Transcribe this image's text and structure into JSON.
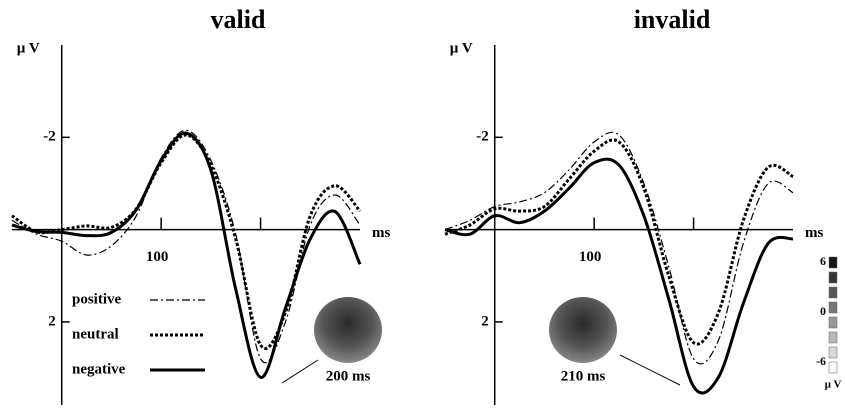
{
  "chart_data": [
    {
      "type": "line",
      "title": "valid",
      "ylabel": "µ V",
      "xlabel": "ms",
      "y_inverted": true,
      "xlim": [
        -50,
        300
      ],
      "ylim": [
        -4,
        3.8
      ],
      "xticks": [
        100,
        {
          "value": 200,
          "label": null
        }
      ],
      "yticks": [
        -2,
        2
      ],
      "legend": "lower left",
      "annotation": "200 ms",
      "x": [
        -50,
        -25,
        0,
        25,
        50,
        75,
        100,
        125,
        150,
        175,
        200,
        225,
        250,
        275,
        300
      ],
      "series": [
        {
          "name": "positive",
          "color": "#000000",
          "dash": "dash-dot",
          "width": 1.2,
          "values": [
            -0.2,
            0.1,
            0.25,
            0.55,
            0.35,
            -0.3,
            -1.55,
            -2.15,
            -1.5,
            0.1,
            2.8,
            2.0,
            -0.1,
            -0.75,
            -0.1
          ]
        },
        {
          "name": "neutral",
          "color": "#000000",
          "dash": "dotted",
          "width": 3,
          "values": [
            -0.3,
            0.05,
            0.0,
            -0.08,
            -0.05,
            -0.45,
            -1.45,
            -2.05,
            -1.4,
            0.2,
            2.5,
            1.8,
            -0.3,
            -0.95,
            -0.4
          ]
        },
        {
          "name": "negative",
          "color": "#000000",
          "dash": "solid",
          "width": 3,
          "values": [
            -0.1,
            0.04,
            0.06,
            0.13,
            0.06,
            -0.43,
            -1.5,
            -2.09,
            -1.29,
            1.29,
            3.2,
            1.7,
            0.2,
            -0.39,
            0.75
          ]
        }
      ]
    },
    {
      "type": "line",
      "title": "invalid",
      "ylabel": "µ V",
      "xlabel": "ms",
      "y_inverted": true,
      "xlim": [
        -50,
        300
      ],
      "ylim": [
        -4,
        3.8
      ],
      "xticks": [
        100,
        {
          "value": 200,
          "label": null
        }
      ],
      "yticks": [
        -2,
        2
      ],
      "annotation": "210 ms",
      "colorbar": {
        "ticks": [
          6,
          0,
          -6
        ],
        "label": "µ V"
      },
      "x": [
        -50,
        -25,
        0,
        25,
        50,
        75,
        100,
        125,
        150,
        175,
        200,
        225,
        250,
        275,
        300
      ],
      "series": [
        {
          "color": "#000000",
          "dash": "dash-dot",
          "width": 1.2,
          "values": [
            0.0,
            -0.2,
            -0.5,
            -0.6,
            -0.8,
            -1.3,
            -1.9,
            -2.05,
            -1.0,
            0.8,
            2.8,
            2.4,
            0.3,
            -1.0,
            -0.8
          ]
        },
        {
          "color": "#000000",
          "dash": "dotted",
          "width": 3,
          "values": [
            0.1,
            -0.1,
            -0.45,
            -0.4,
            -0.5,
            -1.1,
            -1.7,
            -1.9,
            -0.9,
            1.0,
            2.45,
            1.8,
            -0.2,
            -1.35,
            -1.15
          ]
        },
        {
          "color": "#000000",
          "dash": "solid",
          "width": 3,
          "values": [
            0.0,
            0.1,
            -0.3,
            -0.15,
            -0.4,
            -0.9,
            -1.45,
            -1.4,
            -0.3,
            1.5,
            3.4,
            3.2,
            1.6,
            0.3,
            0.2
          ]
        }
      ]
    }
  ]
}
